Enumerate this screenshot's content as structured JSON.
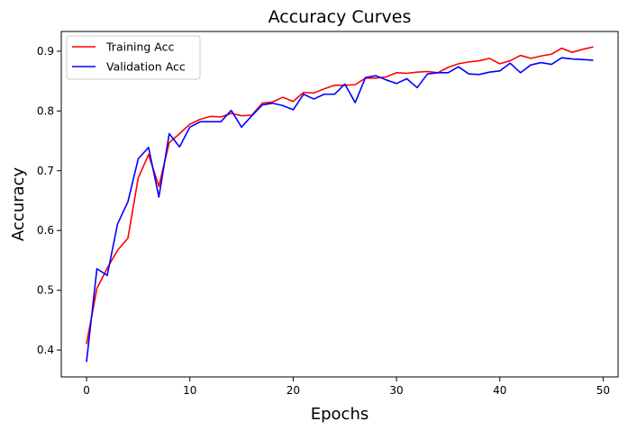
{
  "chart_data": {
    "type": "line",
    "title": "Accuracy Curves",
    "xlabel": "Epochs",
    "ylabel": "Accuracy",
    "xlim": [
      -2.45,
      51.45
    ],
    "ylim": [
      0.355,
      0.933
    ],
    "xticks": [
      0,
      10,
      20,
      30,
      40,
      50
    ],
    "yticks": [
      0.4,
      0.5,
      0.6,
      0.7,
      0.8,
      0.9
    ],
    "ytick_labels": [
      "0.4",
      "0.5",
      "0.6",
      "0.7",
      "0.8",
      "0.9"
    ],
    "grid": false,
    "legend_position": "top-left",
    "x": [
      0,
      1,
      2,
      3,
      4,
      5,
      6,
      7,
      8,
      9,
      10,
      11,
      12,
      13,
      14,
      15,
      16,
      17,
      18,
      19,
      20,
      21,
      22,
      23,
      24,
      25,
      26,
      27,
      28,
      29,
      30,
      31,
      32,
      33,
      34,
      35,
      36,
      37,
      38,
      39,
      40,
      41,
      42,
      43,
      44,
      45,
      46,
      47,
      48,
      49
    ],
    "series": [
      {
        "name": "Training Acc",
        "color": "#ff0000",
        "values": [
          0.411,
          0.503,
          0.537,
          0.567,
          0.587,
          0.688,
          0.727,
          0.674,
          0.747,
          0.762,
          0.778,
          0.786,
          0.791,
          0.79,
          0.796,
          0.792,
          0.793,
          0.813,
          0.815,
          0.823,
          0.816,
          0.831,
          0.83,
          0.837,
          0.843,
          0.843,
          0.844,
          0.855,
          0.855,
          0.857,
          0.864,
          0.863,
          0.865,
          0.866,
          0.864,
          0.873,
          0.879,
          0.882,
          0.884,
          0.888,
          0.879,
          0.884,
          0.893,
          0.888,
          0.892,
          0.895,
          0.905,
          0.898,
          0.903,
          0.907
        ]
      },
      {
        "name": "Validation Acc",
        "color": "#0000ff",
        "values": [
          0.381,
          0.536,
          0.525,
          0.611,
          0.648,
          0.72,
          0.739,
          0.656,
          0.762,
          0.74,
          0.773,
          0.782,
          0.782,
          0.782,
          0.801,
          0.773,
          0.792,
          0.81,
          0.813,
          0.809,
          0.802,
          0.828,
          0.82,
          0.828,
          0.828,
          0.845,
          0.814,
          0.856,
          0.859,
          0.852,
          0.846,
          0.854,
          0.839,
          0.862,
          0.864,
          0.864,
          0.874,
          0.862,
          0.861,
          0.865,
          0.867,
          0.88,
          0.864,
          0.877,
          0.881,
          0.878,
          0.889,
          0.887,
          0.886,
          0.885
        ]
      }
    ]
  }
}
